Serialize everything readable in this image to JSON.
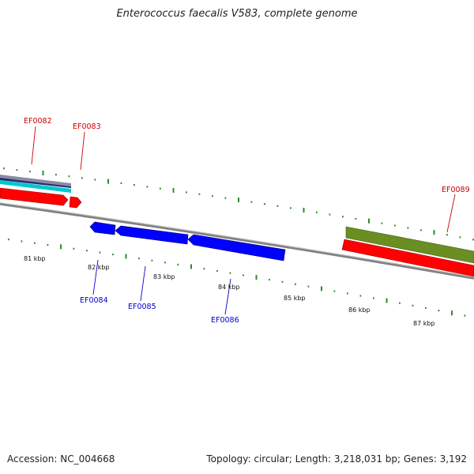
{
  "title": "Enterococcus faecalis V583, complete genome",
  "footer": {
    "accession": "Accession: NC_004668",
    "summary": "Topology: circular; Length: 3,218,031 bp; Genes: 3,192"
  },
  "colors": {
    "forward_gene": "#ff0000",
    "reverse_gene": "#0000ff",
    "tick": "#2f8a2f",
    "backbone": "#808080",
    "olive_track": "#6b8e23",
    "cyan_track": "#00c8d0",
    "slate_track": "#8a8aa8",
    "navy_track": "#2b2b6a"
  },
  "ruler_labels": [
    "81 kbp",
    "82 kbp",
    "83 kbp",
    "84 kbp",
    "85 kbp",
    "86 kbp",
    "87 kbp"
  ],
  "genes": [
    {
      "id": "EF0082",
      "strand": "forward"
    },
    {
      "id": "EF0083",
      "strand": "forward"
    },
    {
      "id": "EF0084",
      "strand": "reverse"
    },
    {
      "id": "EF0085",
      "strand": "reverse"
    },
    {
      "id": "EF0086",
      "strand": "reverse"
    },
    {
      "id": "EF0089",
      "strand": "forward"
    }
  ]
}
